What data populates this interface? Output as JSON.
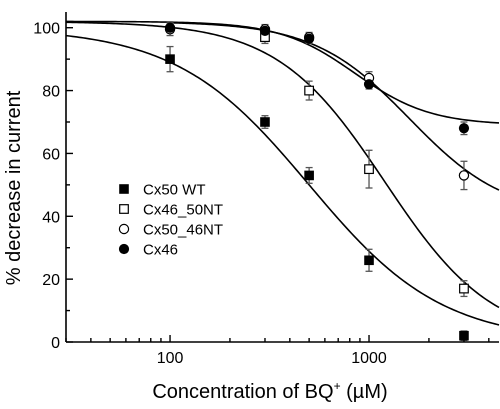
{
  "chart_data": {
    "type": "scatter",
    "xlabel_prefix": "Concentration of BQ",
    "xlabel_sup": "+",
    "xlabel_suffix": " (µM)",
    "ylabel": "% decrease in current",
    "xscale": "log",
    "xlim": [
      30,
      4500
    ],
    "ylim": [
      0,
      105
    ],
    "xticks": [
      100,
      1000
    ],
    "xtick_labels": [
      "100",
      "1000"
    ],
    "yticks": [
      0,
      20,
      40,
      60,
      80,
      100
    ],
    "ytick_labels": [
      "0",
      "20",
      "40",
      "60",
      "80",
      "100"
    ],
    "grid": false,
    "legend_position": "center-left",
    "series": [
      {
        "name": "Cx50 WT",
        "marker": "square-filled",
        "x": [
          100,
          300,
          500,
          1000,
          3000
        ],
        "y": [
          90,
          70,
          53,
          26,
          2
        ],
        "err": [
          4,
          2,
          2.5,
          3.5,
          1.5
        ],
        "fit": {
          "bottom": 0,
          "top": 100,
          "ic50": 500,
          "hill": 1.3,
          "xmin": 30,
          "xmax": 4500
        }
      },
      {
        "name": "Cx46_50NT",
        "marker": "square-open",
        "x": [
          300,
          500,
          1000,
          3000
        ],
        "y": [
          97,
          80,
          55,
          17
        ],
        "err": [
          2,
          3,
          6,
          2.5
        ],
        "fit": {
          "bottom": 0,
          "top": 102,
          "ic50": 1200,
          "hill": 1.6,
          "xmin": 30,
          "xmax": 4500
        }
      },
      {
        "name": "Cx50_46NT",
        "marker": "circle-open",
        "x": [
          100,
          300,
          500,
          1000,
          3000
        ],
        "y": [
          99.5,
          99.5,
          97,
          84,
          53
        ],
        "err": [
          2,
          1.5,
          1.5,
          2,
          4.5
        ],
        "fit": {
          "bottom": 40,
          "top": 102,
          "ic50": 1600,
          "hill": 1.8,
          "xmin": 100,
          "xmax": 4500
        }
      },
      {
        "name": "Cx46",
        "marker": "circle-filled",
        "x": [
          100,
          300,
          500,
          1000,
          3000
        ],
        "y": [
          100,
          99,
          96.5,
          82,
          68
        ],
        "err": [
          1.5,
          1.5,
          1.5,
          1.5,
          2
        ],
        "fit": {
          "bottom": 69,
          "top": 102,
          "ic50": 850,
          "hill": 2.3,
          "xmin": 30,
          "xmax": 4500
        }
      }
    ]
  }
}
